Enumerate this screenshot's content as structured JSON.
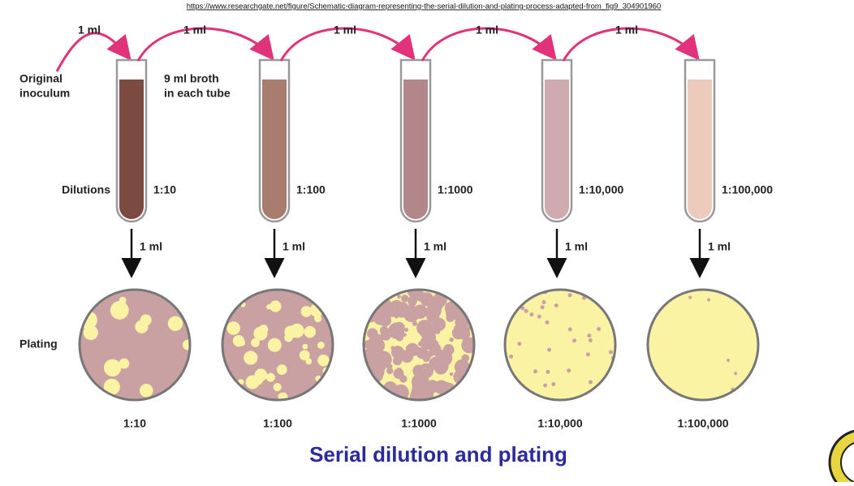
{
  "source": "https://www.researchgate.net/figure/Schematic-diagram-representing-the-serial-dilution-and-plating-process-adapted-from_fig9_304901960",
  "original_inoculum": [
    "Original",
    "inoculum"
  ],
  "broth_note": [
    "9 ml broth",
    "in each tube"
  ],
  "dilutions_label": "Dilutions",
  "plating_label": "Plating",
  "tubes": [
    {
      "transfer_in": "1 ml",
      "dilution": "1:10",
      "transfer_to_plate": "1 ml"
    },
    {
      "transfer_in": "1 ml",
      "dilution": "1:100",
      "transfer_to_plate": "1 ml"
    },
    {
      "transfer_in": "1 ml",
      "dilution": "1:1000",
      "transfer_to_plate": "1 ml"
    },
    {
      "transfer_in": "1 ml",
      "dilution": "1:10,000",
      "transfer_to_plate": "1 ml"
    },
    {
      "transfer_in": "1 ml",
      "dilution": "1:100,000",
      "transfer_to_plate": "1 ml"
    }
  ],
  "plates": [
    "1:10",
    "1:100",
    "1:1000",
    "1:10,000",
    "1:100,000"
  ],
  "title": "Serial dilution and plating"
}
